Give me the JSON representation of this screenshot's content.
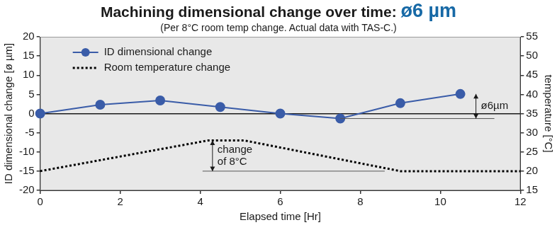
{
  "chart_data": {
    "type": "line",
    "title": "Machining dimensional change over time:",
    "title_emphasis": "ø6 µm",
    "subtitle": "(Per 8°C room temp change. Actual data with TAS-C.)",
    "x_label": "Elapsed time [Hr]",
    "y_label": "ID dimensional change [ø µm]",
    "y2_label": "temperature [°C]",
    "xlim": [
      0,
      12
    ],
    "xticks": [
      0,
      2,
      4,
      6,
      8,
      10,
      12
    ],
    "ylim": [
      -20,
      20
    ],
    "yticks": [
      -20,
      -15,
      -10,
      -5,
      0,
      5,
      10,
      15,
      20
    ],
    "y2lim": [
      15,
      55
    ],
    "y2ticks": [
      15,
      20,
      25,
      30,
      35,
      40,
      45,
      50,
      55
    ],
    "grid": false,
    "legend": "top left",
    "series": [
      {
        "name": "ID dimensional change",
        "color": "#3a5ca8",
        "marker": "circle",
        "line_style": "solid",
        "x": [
          0,
          1.5,
          3,
          4.5,
          6,
          7.5,
          9,
          10.5
        ],
        "values": [
          0,
          2.3,
          3.4,
          1.7,
          0,
          -1.3,
          2.7,
          5.1
        ]
      },
      {
        "name": "Room temperature change",
        "color": "#000000",
        "marker": "none",
        "line_style": "dotted",
        "axis": "y2",
        "x": [
          0,
          4.2,
          5.1,
          9,
          12
        ],
        "values": [
          20,
          28,
          28,
          20,
          20
        ]
      }
    ],
    "annotations": [
      {
        "text": [
          "ø6µm"
        ],
        "axis": "y",
        "from": -1.3,
        "to": 5.1
      },
      {
        "text": [
          "change",
          "of 8°C"
        ],
        "axis": "y2",
        "from": 20,
        "to": 28
      }
    ]
  }
}
